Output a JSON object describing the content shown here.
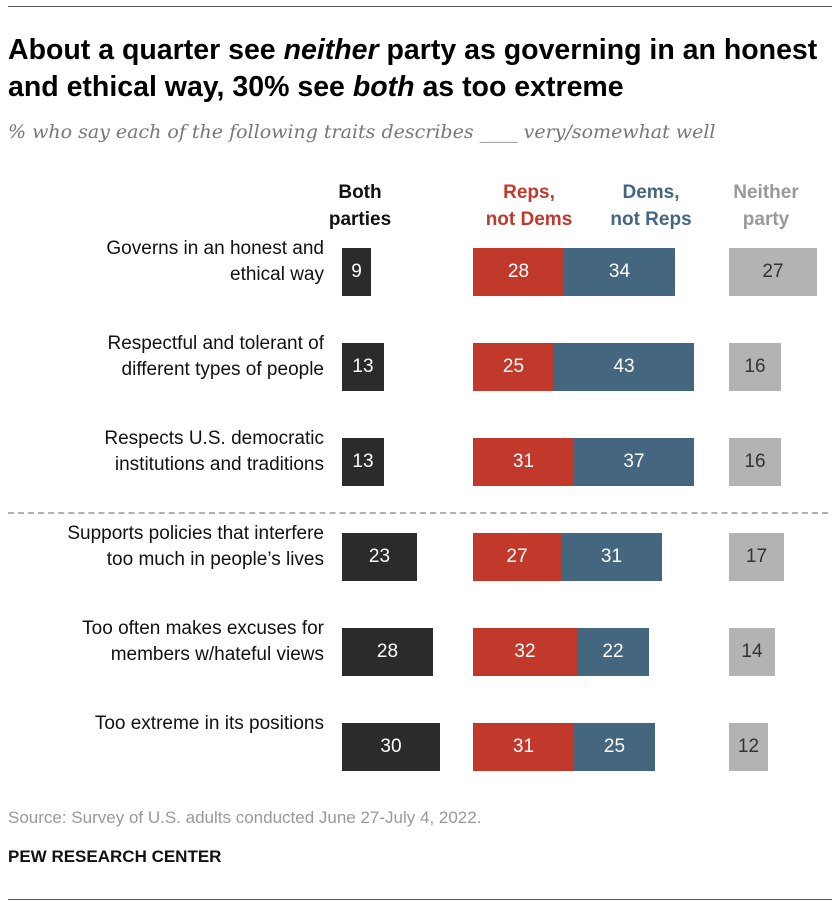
{
  "header": {
    "title_parts": [
      {
        "text": "About a quarter see ",
        "em": false
      },
      {
        "text": "neither",
        "em": true
      },
      {
        "text": " party as governing in an honest and ethical way, 30% see ",
        "em": false
      },
      {
        "text": "both",
        "em": true
      },
      {
        "text": " as too extreme",
        "em": false
      }
    ],
    "subtitle": "% who say each of the following traits describes ____ very/somewhat well"
  },
  "footer": {
    "source": "Source: Survey of U.S. adults conducted June 27-July 4, 2022.",
    "credit": "PEW RESEARCH CENTER"
  },
  "colors": {
    "both": "#2b2b2b",
    "reps": "#c0392b",
    "dems": "#44677f",
    "neither": "#b3b3b3",
    "neither_text": "#999999"
  },
  "chart_data": {
    "type": "bar",
    "orientation": "horizontal",
    "title": "About a quarter see neither party as governing in an honest and ethical way, 30% see both as too extreme",
    "subtitle": "% who say each of the following traits describes ____ very/somewhat well",
    "columns": [
      {
        "key": "both",
        "label": [
          "Both",
          "parties"
        ]
      },
      {
        "key": "reps",
        "label": [
          "Reps,",
          "not Dems"
        ]
      },
      {
        "key": "dems",
        "label": [
          "Dems,",
          "not Reps"
        ]
      },
      {
        "key": "neither",
        "label": [
          "Neither",
          "party"
        ]
      }
    ],
    "categories": [
      [
        "Governs in an honest and",
        "ethical way"
      ],
      [
        "Respectful and tolerant of",
        "different types of people"
      ],
      [
        "Respects U.S. democratic",
        "institutions and traditions"
      ],
      [
        "Supports policies that interfere",
        "too much in people’s lives"
      ],
      [
        "Too often makes excuses for",
        "members w/hateful views"
      ],
      [
        "Too extreme in its positions"
      ]
    ],
    "series": [
      {
        "name": "Both parties",
        "key": "both",
        "values": [
          9,
          13,
          13,
          23,
          28,
          30
        ]
      },
      {
        "name": "Reps, not Dems",
        "key": "reps",
        "values": [
          28,
          25,
          31,
          27,
          32,
          31
        ]
      },
      {
        "name": "Dems, not Reps",
        "key": "dems",
        "values": [
          34,
          43,
          37,
          31,
          22,
          25
        ]
      },
      {
        "name": "Neither party",
        "key": "neither",
        "values": [
          27,
          16,
          16,
          17,
          14,
          12
        ]
      }
    ],
    "divider_after_row": 2
  }
}
